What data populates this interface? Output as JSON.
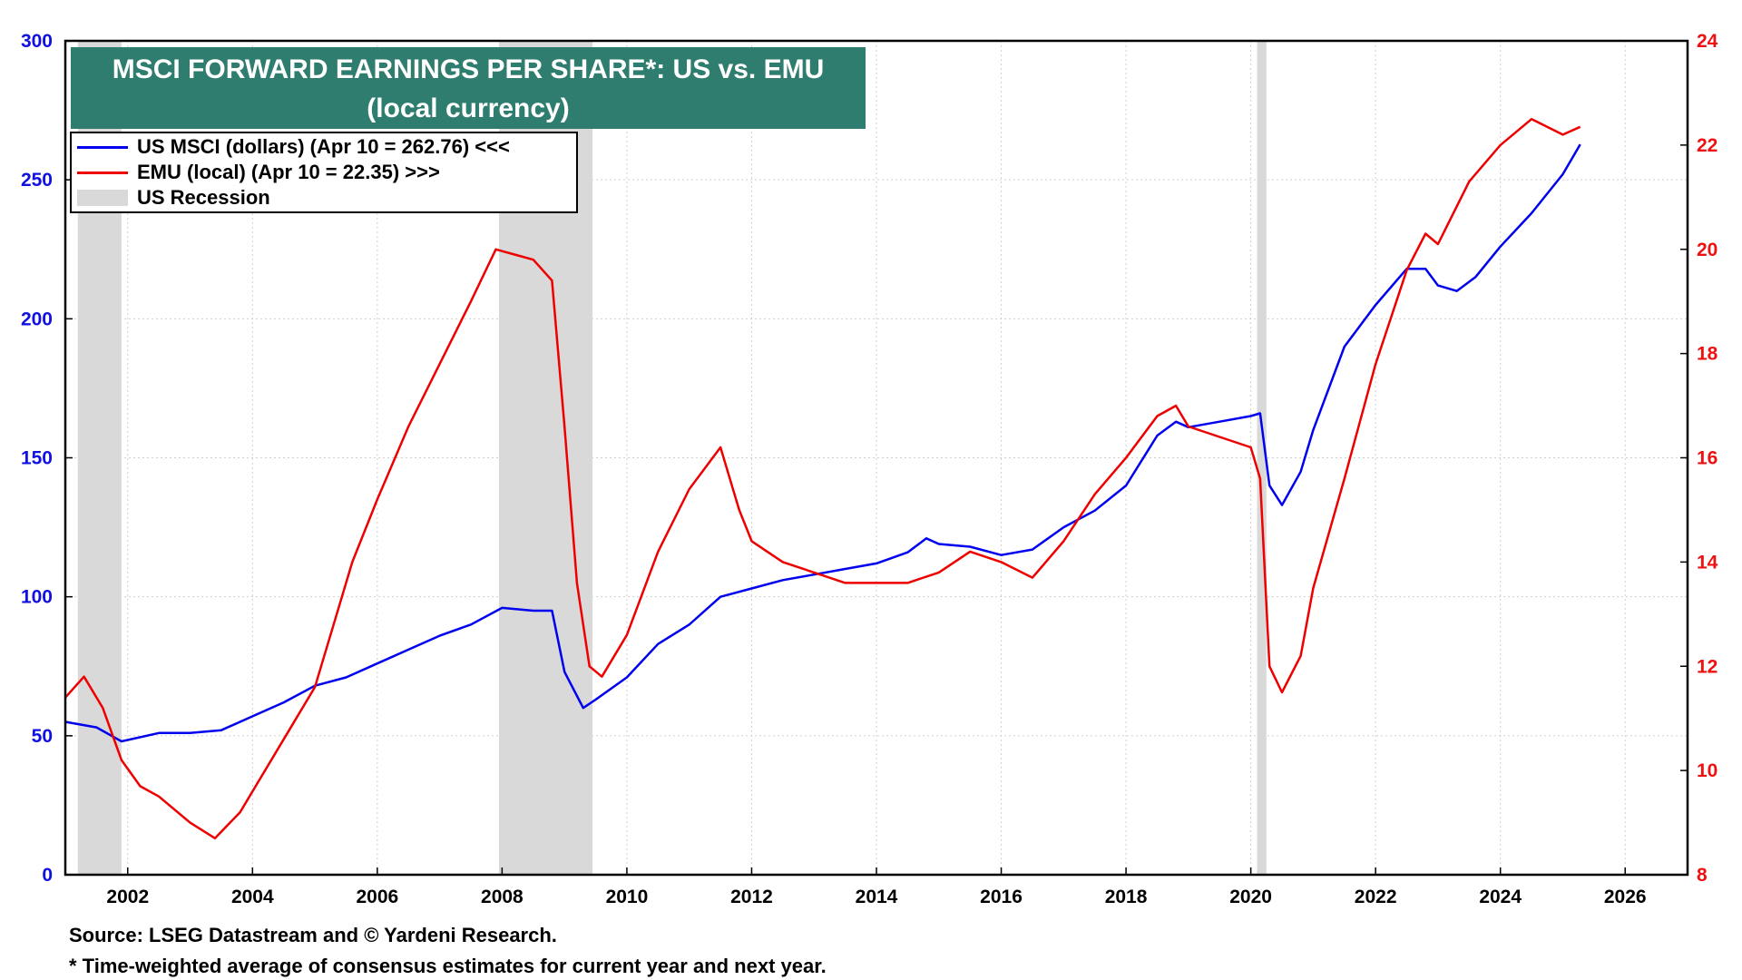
{
  "title_line1": "MSCI FORWARD EARNINGS PER SHARE*: US vs. EMU",
  "title_line2": "(local currency)",
  "legend": {
    "us_label": "US MSCI (dollars) (Apr 10 = 262.76) <<<",
    "emu_label": "EMU (local) (Apr 10 = 22.35) >>>",
    "recession_label": "US Recession"
  },
  "footer": {
    "source": "Source: LSEG Datastream and © Yardeni Research.",
    "note": "* Time-weighted average of consensus estimates for current year and next year."
  },
  "colors": {
    "us": "#0000ee",
    "emu": "#ee0000",
    "recession": "#d9d9d9",
    "title_bg": "#2e7d6f"
  },
  "chart_data": {
    "type": "line",
    "x_range": [
      2001.0,
      2027.0
    ],
    "x_ticks": [
      2002,
      2004,
      2006,
      2008,
      2010,
      2012,
      2014,
      2016,
      2018,
      2020,
      2022,
      2024,
      2026
    ],
    "left_axis": {
      "range": [
        0,
        300
      ],
      "ticks": [
        0,
        50,
        100,
        150,
        200,
        250,
        300
      ]
    },
    "right_axis": {
      "range": [
        8,
        24
      ],
      "ticks": [
        8,
        10,
        12,
        14,
        16,
        18,
        20,
        22,
        24
      ]
    },
    "grid": true,
    "legend_position": "top-left",
    "recessions": [
      [
        2001.2,
        2001.9
      ],
      [
        2007.95,
        2009.45
      ],
      [
        2020.1,
        2020.25
      ]
    ],
    "series": [
      {
        "name": "US MSCI (dollars) (Apr 10 = 262.76) <<<",
        "axis": "left",
        "points": [
          [
            2001.0,
            55
          ],
          [
            2001.5,
            53
          ],
          [
            2001.9,
            48
          ],
          [
            2002.5,
            51
          ],
          [
            2003.0,
            51
          ],
          [
            2003.5,
            52
          ],
          [
            2004.0,
            57
          ],
          [
            2004.5,
            62
          ],
          [
            2005.0,
            68
          ],
          [
            2005.5,
            71
          ],
          [
            2006.0,
            76
          ],
          [
            2006.5,
            81
          ],
          [
            2007.0,
            86
          ],
          [
            2007.5,
            90
          ],
          [
            2008.0,
            96
          ],
          [
            2008.5,
            95
          ],
          [
            2008.8,
            95
          ],
          [
            2009.0,
            73
          ],
          [
            2009.3,
            60
          ],
          [
            2009.5,
            63
          ],
          [
            2010.0,
            71
          ],
          [
            2010.5,
            83
          ],
          [
            2011.0,
            90
          ],
          [
            2011.5,
            100
          ],
          [
            2012.0,
            103
          ],
          [
            2012.5,
            106
          ],
          [
            2013.0,
            108
          ],
          [
            2013.5,
            110
          ],
          [
            2014.0,
            112
          ],
          [
            2014.5,
            116
          ],
          [
            2014.8,
            121
          ],
          [
            2015.0,
            119
          ],
          [
            2015.5,
            118
          ],
          [
            2016.0,
            115
          ],
          [
            2016.5,
            117
          ],
          [
            2017.0,
            125
          ],
          [
            2017.5,
            131
          ],
          [
            2018.0,
            140
          ],
          [
            2018.5,
            158
          ],
          [
            2018.8,
            163
          ],
          [
            2019.0,
            161
          ],
          [
            2019.5,
            163
          ],
          [
            2020.0,
            165
          ],
          [
            2020.15,
            166
          ],
          [
            2020.3,
            140
          ],
          [
            2020.5,
            133
          ],
          [
            2020.8,
            145
          ],
          [
            2021.0,
            160
          ],
          [
            2021.5,
            190
          ],
          [
            2022.0,
            205
          ],
          [
            2022.5,
            218
          ],
          [
            2022.8,
            218
          ],
          [
            2023.0,
            212
          ],
          [
            2023.3,
            210
          ],
          [
            2023.6,
            215
          ],
          [
            2024.0,
            226
          ],
          [
            2024.5,
            238
          ],
          [
            2025.0,
            252
          ],
          [
            2025.28,
            262.76
          ]
        ]
      },
      {
        "name": "EMU (local) (Apr 10 = 22.35) >>>",
        "axis": "right",
        "points": [
          [
            2001.0,
            11.4
          ],
          [
            2001.3,
            11.8
          ],
          [
            2001.6,
            11.2
          ],
          [
            2001.9,
            10.2
          ],
          [
            2002.2,
            9.7
          ],
          [
            2002.5,
            9.5
          ],
          [
            2003.0,
            9.0
          ],
          [
            2003.4,
            8.7
          ],
          [
            2003.8,
            9.2
          ],
          [
            2004.2,
            10.0
          ],
          [
            2004.6,
            10.8
          ],
          [
            2005.0,
            11.6
          ],
          [
            2005.3,
            12.8
          ],
          [
            2005.6,
            14.0
          ],
          [
            2006.0,
            15.2
          ],
          [
            2006.5,
            16.6
          ],
          [
            2007.0,
            17.8
          ],
          [
            2007.5,
            19.0
          ],
          [
            2007.9,
            20.0
          ],
          [
            2008.2,
            19.9
          ],
          [
            2008.5,
            19.8
          ],
          [
            2008.8,
            19.4
          ],
          [
            2009.0,
            16.6
          ],
          [
            2009.2,
            13.6
          ],
          [
            2009.4,
            12.0
          ],
          [
            2009.6,
            11.8
          ],
          [
            2010.0,
            12.6
          ],
          [
            2010.5,
            14.2
          ],
          [
            2011.0,
            15.4
          ],
          [
            2011.5,
            16.2
          ],
          [
            2011.8,
            15.0
          ],
          [
            2012.0,
            14.4
          ],
          [
            2012.5,
            14.0
          ],
          [
            2013.0,
            13.8
          ],
          [
            2013.5,
            13.6
          ],
          [
            2014.0,
            13.6
          ],
          [
            2014.5,
            13.6
          ],
          [
            2015.0,
            13.8
          ],
          [
            2015.5,
            14.2
          ],
          [
            2016.0,
            14.0
          ],
          [
            2016.5,
            13.7
          ],
          [
            2017.0,
            14.4
          ],
          [
            2017.5,
            15.3
          ],
          [
            2018.0,
            16.0
          ],
          [
            2018.5,
            16.8
          ],
          [
            2018.8,
            17.0
          ],
          [
            2019.0,
            16.6
          ],
          [
            2019.5,
            16.4
          ],
          [
            2020.0,
            16.2
          ],
          [
            2020.15,
            15.6
          ],
          [
            2020.3,
            12.0
          ],
          [
            2020.5,
            11.5
          ],
          [
            2020.8,
            12.2
          ],
          [
            2021.0,
            13.5
          ],
          [
            2021.5,
            15.6
          ],
          [
            2022.0,
            17.8
          ],
          [
            2022.5,
            19.6
          ],
          [
            2022.8,
            20.3
          ],
          [
            2023.0,
            20.1
          ],
          [
            2023.5,
            21.3
          ],
          [
            2024.0,
            22.0
          ],
          [
            2024.5,
            22.5
          ],
          [
            2025.0,
            22.2
          ],
          [
            2025.28,
            22.35
          ]
        ]
      }
    ]
  }
}
